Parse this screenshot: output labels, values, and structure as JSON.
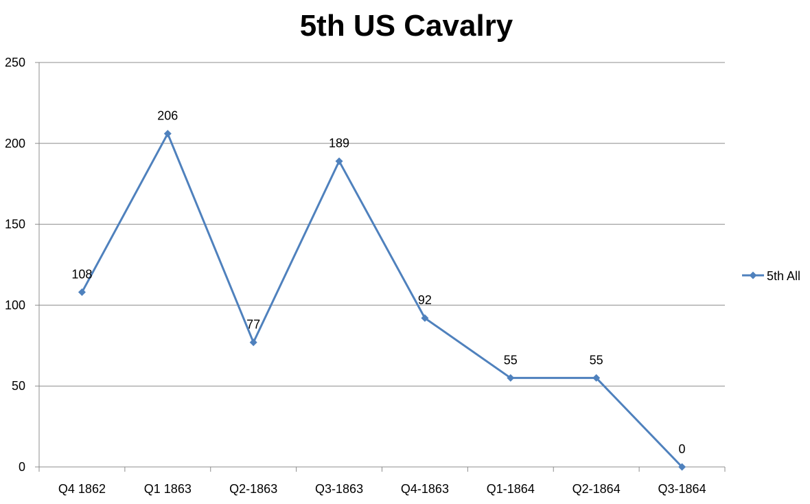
{
  "chart_data": {
    "type": "line",
    "title": "5th US Cavalry",
    "categories": [
      "Q4 1862",
      "Q1 1863",
      "Q2-1863",
      "Q3-1863",
      "Q4-1863",
      "Q1-1864",
      "Q2-1864",
      "Q3-1864"
    ],
    "series": [
      {
        "name": "5th All",
        "values": [
          108,
          206,
          77,
          189,
          92,
          55,
          55,
          0
        ],
        "color": "#4F81BD",
        "marker": "diamond"
      }
    ],
    "yticks": [
      0,
      50,
      100,
      150,
      200,
      250
    ],
    "ylim": [
      0,
      250
    ],
    "xlabel": "",
    "ylabel": "",
    "grid": true,
    "data_labels": true,
    "legend_position": "right"
  }
}
